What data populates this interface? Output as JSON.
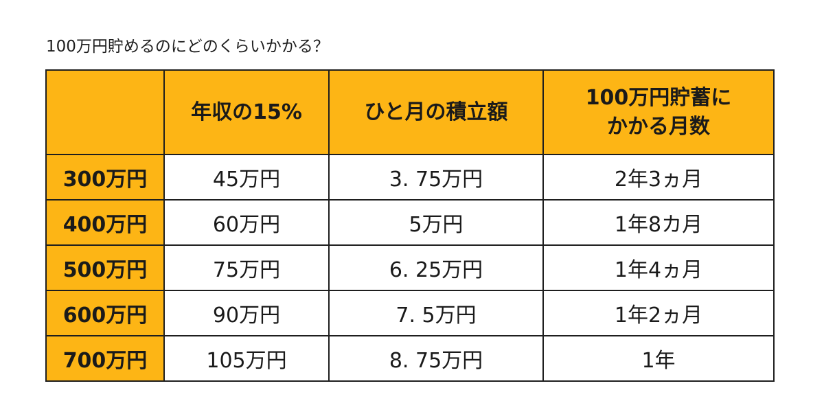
{
  "caption": "100万円貯めるのにどのくらいかかる？",
  "table": {
    "headers": {
      "income": "",
      "fifteen_percent": "年収の15%",
      "monthly": "ひと月の積立額",
      "months_line1": "100万円貯蓄に",
      "months_line2": "かかる月数"
    },
    "rows": [
      {
        "income": "300万円",
        "fifteen_percent": "45万円",
        "monthly": "3. 75万円",
        "months": "2年3ヵ月"
      },
      {
        "income": "400万円",
        "fifteen_percent": "60万円",
        "monthly": "5万円",
        "months": "1年8カ月"
      },
      {
        "income": "500万円",
        "fifteen_percent": "75万円",
        "monthly": "6. 25万円",
        "months": "1年4ヵ月"
      },
      {
        "income": "600万円",
        "fifteen_percent": "90万円",
        "monthly": "7. 5万円",
        "months": "1年2ヵ月"
      },
      {
        "income": "700万円",
        "fifteen_percent": "105万円",
        "monthly": "8. 75万円",
        "months": "1年"
      }
    ]
  },
  "colors": {
    "header_fill": "#fdb515",
    "border": "#1e1e1e",
    "cell_fill": "#ffffff"
  }
}
